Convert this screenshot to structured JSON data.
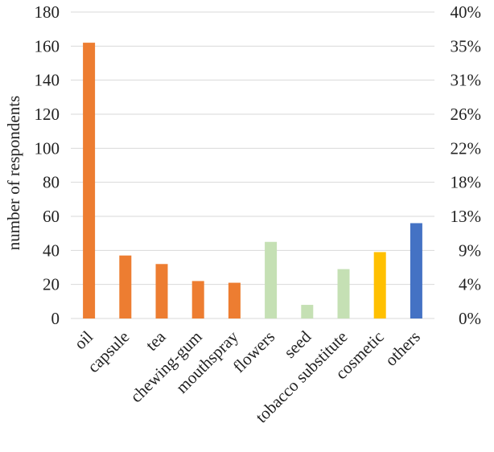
{
  "chart_data": {
    "type": "bar",
    "categories": [
      "oil",
      "capsule",
      "tea",
      "chewing-gum",
      "mouthspray",
      "flowers",
      "seed",
      "tobacco substitute",
      "cosmetic",
      "others"
    ],
    "values": [
      162,
      37,
      32,
      22,
      21,
      45,
      8,
      29,
      39,
      56
    ],
    "colors": [
      "#ed7d31",
      "#ed7d31",
      "#ed7d31",
      "#ed7d31",
      "#ed7d31",
      "#c5e0b4",
      "#c5e0b4",
      "#c5e0b4",
      "#ffc000",
      "#4472c4"
    ],
    "ylabel": "number of respondents",
    "ylim": [
      0,
      180
    ],
    "y_ticks": [
      "0",
      "20",
      "40",
      "60",
      "80",
      "100",
      "120",
      "140",
      "160",
      "180"
    ],
    "y2_ticks": [
      "0%",
      "4%",
      "9%",
      "13%",
      "18%",
      "22%",
      "26%",
      "31%",
      "35%",
      "40%"
    ],
    "grid": true,
    "gridline_color": "#d9d9d9"
  }
}
